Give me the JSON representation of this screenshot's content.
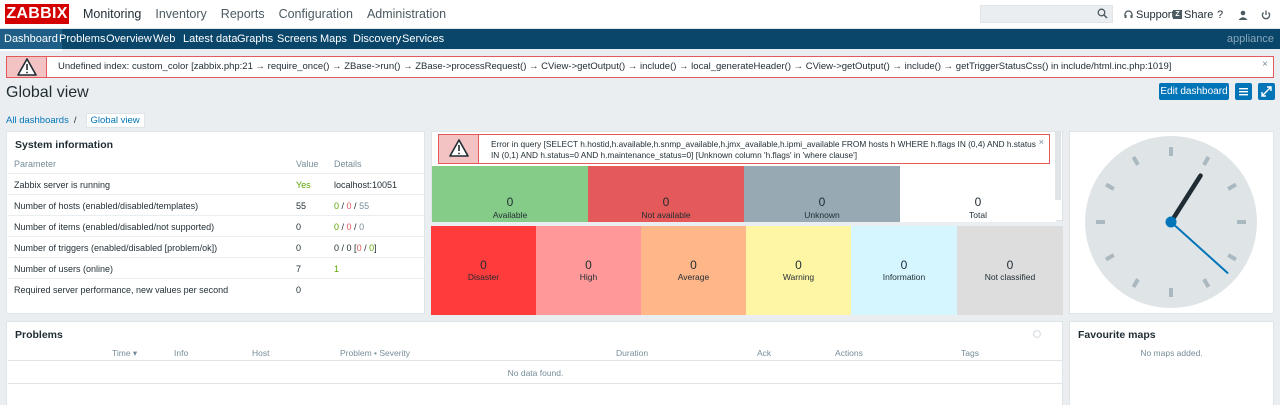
{
  "app": {
    "logo": "ZABBIX"
  },
  "main_menu": [
    "Monitoring",
    "Inventory",
    "Reports",
    "Configuration",
    "Administration"
  ],
  "top_right": {
    "support": "Support",
    "share": "Share",
    "help": "?"
  },
  "sub_nav": [
    "Dashboard",
    "Problems",
    "Overview",
    "Web",
    "Latest data",
    "Graphs",
    "Screens",
    "Maps",
    "Discovery",
    "Services"
  ],
  "appliance": "appliance",
  "error_bar": {
    "message": "Undefined index: custom_color [zabbix.php:21 → require_once() → ZBase->run() → ZBase->processRequest() → CView->getOutput() → include() → local_generateHeader() → CView->getOutput() → include() → getTriggerStatusCss() in include/html.inc.php:1019]",
    "close": "×"
  },
  "page": {
    "title": "Global view",
    "edit_button": "Edit dashboard"
  },
  "breadcrumb": {
    "root": "All dashboards",
    "sep": "/",
    "current": "Global view"
  },
  "system_info": {
    "title": "System information",
    "headers": {
      "param": "Parameter",
      "value": "Value",
      "details": "Details"
    },
    "rows": [
      {
        "param": "Zabbix server is running",
        "value": "Yes",
        "details": "localhost:10051"
      },
      {
        "param": "Number of hosts (enabled/disabled/templates)",
        "value": "55",
        "d1": "0",
        "d2": "0",
        "d3": "55"
      },
      {
        "param": "Number of items (enabled/disabled/not supported)",
        "value": "0",
        "d1": "0",
        "d2": "0",
        "d3": "0"
      },
      {
        "param": "Number of triggers (enabled/disabled [problem/ok])",
        "value": "0",
        "d1": "0",
        "d2": "0",
        "d3": "0",
        "d4": "0"
      },
      {
        "param": "Number of users (online)",
        "value": "7",
        "details": "1"
      },
      {
        "param": "Required server performance, new values per second",
        "value": "0",
        "details": ""
      }
    ]
  },
  "host_error": {
    "message": "Error in query [SELECT h.hostid,h.available,h.snmp_available,h.jmx_available,h.ipmi_available FROM hosts h WHERE h.flags IN (0,4) AND h.status IN (0,1) AND h.status=0 AND h.maintenance_status=0] [Unknown column 'h.flags' in 'where clause']",
    "close": "×"
  },
  "host_availability": [
    {
      "value": "0",
      "label": "Available",
      "color": "#86cc89"
    },
    {
      "value": "0",
      "label": "Not available",
      "color": "#e45959"
    },
    {
      "value": "0",
      "label": "Unknown",
      "color": "#97aab3"
    },
    {
      "value": "0",
      "label": "Total",
      "color": "#ffffff"
    }
  ],
  "severities": [
    {
      "value": "0",
      "label": "Disaster",
      "color": "#ff3b3b"
    },
    {
      "value": "0",
      "label": "High",
      "color": "#ff9898"
    },
    {
      "value": "0",
      "label": "Average",
      "color": "#ffb689"
    },
    {
      "value": "0",
      "label": "Warning",
      "color": "#fff6a5"
    },
    {
      "value": "0",
      "label": "Information",
      "color": "#d6f6ff"
    },
    {
      "value": "0",
      "label": "Not classified",
      "color": "#dddddd"
    }
  ],
  "problems": {
    "title": "Problems",
    "headers": [
      "Time ▾",
      "Info",
      "Host",
      "Problem • Severity",
      "Duration",
      "Ack",
      "Actions",
      "Tags"
    ],
    "empty": "No data found."
  },
  "fav_maps": {
    "title": "Favourite maps",
    "empty": "No maps added."
  },
  "clock": {
    "hour": 1,
    "minute": 5,
    "second": 22
  }
}
